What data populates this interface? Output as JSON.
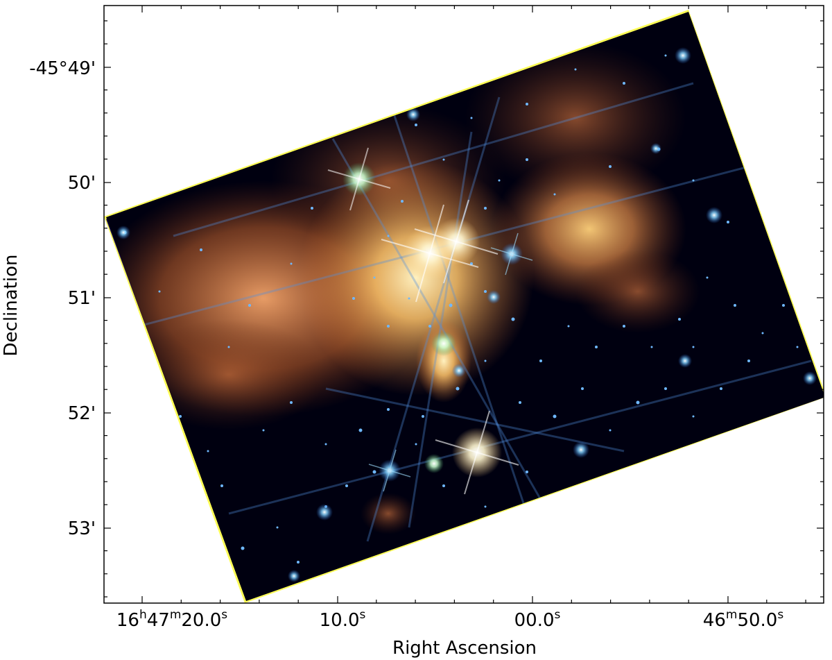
{
  "figure": {
    "x_axis": {
      "label": "Right Ascension",
      "ticks": [
        {
          "pre": "16",
          "h": "h",
          "mid1": "47",
          "m": "m",
          "mid2": "20.0",
          "s": "s"
        },
        {
          "pre": "",
          "h": "",
          "mid1": "",
          "m": "",
          "mid2": "10.0",
          "s": "s"
        },
        {
          "pre": "",
          "h": "",
          "mid1": "",
          "m": "",
          "mid2": "00.0",
          "s": "s"
        },
        {
          "pre": "",
          "h": "",
          "mid1": "46",
          "m": "m",
          "mid2": "50.0",
          "s": "s"
        }
      ]
    },
    "y_axis": {
      "label": "Declination",
      "ticks": [
        "-45°49'",
        "50'",
        "51'",
        "52'",
        "53'"
      ]
    },
    "colors": {
      "frame": "#000000",
      "background": "#000010",
      "nebula_orange": "#e8874a",
      "nebula_bright": "#ffc46a",
      "star_blue": "#5fb8ff",
      "edge_yellow": "#ffff55",
      "edge_violet": "#3a2a8a"
    }
  }
}
